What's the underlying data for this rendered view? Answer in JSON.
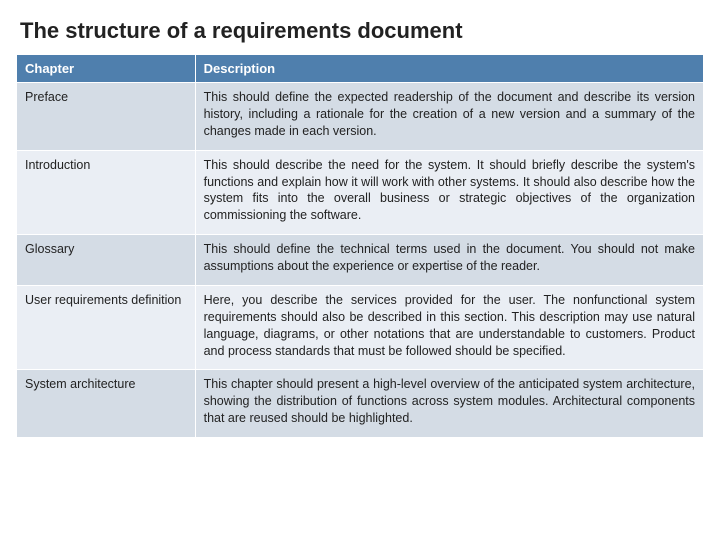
{
  "title": "The structure of a requirements document",
  "table": {
    "type": "table",
    "columns": [
      "Chapter",
      "Description"
    ],
    "column_widths": [
      "26%",
      "74%"
    ],
    "header_bg": "#4f7fad",
    "header_fg": "#ffffff",
    "row_bg_a": "#d4dce5",
    "row_bg_b": "#eaeef4",
    "border_color": "#ffffff",
    "title_fontsize": 22,
    "header_fontsize": 13,
    "cell_fontsize": 12.5,
    "rows": [
      {
        "chapter": "Preface",
        "description": "This should define the expected readership of the document and describe its version history, including a rationale for the creation of a new version and a summary of the changes made in each version."
      },
      {
        "chapter": "Introduction",
        "description": "This should describe the need for the system. It should briefly describe the system's functions and explain how it will work with other systems. It should also describe how the system fits into the overall business or strategic objectives of the organization commissioning the software."
      },
      {
        "chapter": "Glossary",
        "description": "This should define the technical terms used in the document. You should not make assumptions about the experience or expertise of the reader."
      },
      {
        "chapter": "User requirements definition",
        "description": "Here, you describe the services provided for the user. The nonfunctional system requirements should also be described in this section. This description may use natural language, diagrams, or other notations that are understandable to customers. Product and process standards that must be followed should be specified."
      },
      {
        "chapter": "System architecture",
        "description": "This chapter should present a high-level overview of the anticipated system architecture, showing the distribution of functions across system modules. Architectural components that are reused should be highlighted."
      }
    ]
  }
}
